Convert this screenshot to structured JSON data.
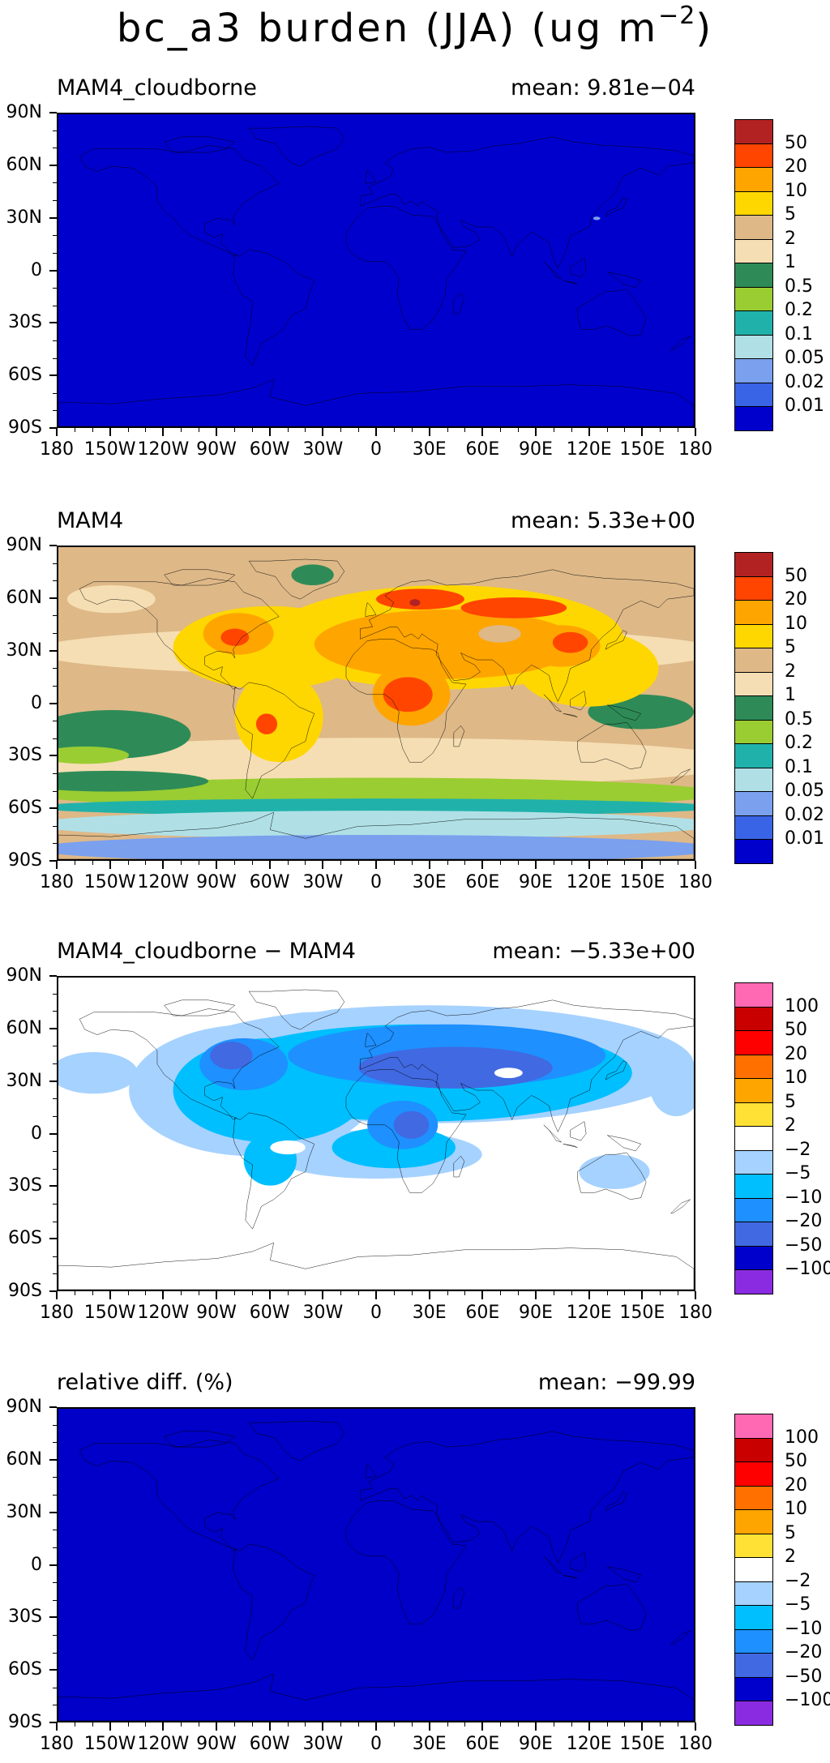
{
  "title": {
    "main": "bc_a3 burden (JJA) (ug m",
    "exp": "−2",
    "close": ")"
  },
  "lat_ticks": [
    "90N",
    "60N",
    "30N",
    "0",
    "30S",
    "60S",
    "90S"
  ],
  "lon_ticks": [
    "180",
    "150W",
    "120W",
    "90W",
    "60W",
    "30W",
    "0",
    "30E",
    "60E",
    "90E",
    "120E",
    "150E",
    "180"
  ],
  "scales": {
    "burden": {
      "labels": [
        "0.01",
        "0.02",
        "0.05",
        "0.1",
        "0.2",
        "0.5",
        "1",
        "2",
        "5",
        "10",
        "20",
        "50"
      ],
      "colors": [
        "#0000cd",
        "#3a64e6",
        "#7aa0ee",
        "#b0e0e6",
        "#20b2aa",
        "#9acd32",
        "#2e8b57",
        "#f5deb3",
        "#deb887",
        "#ffd700",
        "#ffa500",
        "#ff4500",
        "#b22222"
      ]
    },
    "diff": {
      "labels": [
        "-100",
        "-50",
        "-20",
        "-10",
        "-5",
        "-2",
        "2",
        "5",
        "10",
        "20",
        "50",
        "100"
      ],
      "colors": [
        "#8a2be2",
        "#0000cd",
        "#4169e1",
        "#1e90ff",
        "#00bfff",
        "#a6d2ff",
        "#ffffff",
        "#ffe135",
        "#ffa500",
        "#ff7000",
        "#ff0000",
        "#c80000",
        "#ff69b4"
      ]
    }
  },
  "panels": [
    {
      "label": "MAM4_cloudborne",
      "mean": "mean: 9.81e−04",
      "scale": "burden",
      "map_style": "uniform_low"
    },
    {
      "label": "MAM4",
      "mean": "mean: 5.33e+00",
      "scale": "burden",
      "map_style": "burden_field"
    },
    {
      "label": "MAM4_cloudborne − MAM4",
      "mean": "mean: −5.33e+00",
      "scale": "diff",
      "map_style": "difference_field"
    },
    {
      "label": "relative diff. (%)",
      "mean": "mean: −99.99",
      "scale": "diff",
      "map_style": "uniform_min"
    }
  ]
}
